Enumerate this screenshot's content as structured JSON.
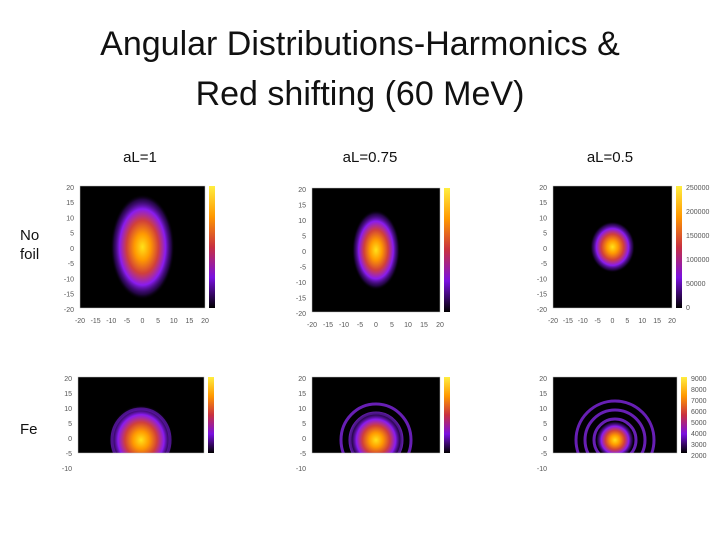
{
  "title_lines": [
    "Angular Distributions-Harmonics &",
    "Red shifting (60 MeV)"
  ],
  "columns": [
    "aL=1",
    "aL=0.75",
    "aL=0.5"
  ],
  "rows": [
    "No foil",
    "Fe"
  ],
  "panels": [
    [
      {
        "yticks": [
          "20",
          "15",
          "10",
          "5",
          "0",
          "-5",
          "-10",
          "-15",
          "-20"
        ],
        "xticks": [
          "-20",
          "-15",
          "-10",
          "-5",
          "0",
          "5",
          "10",
          "15",
          "20"
        ]
      },
      {
        "yticks": [
          "20",
          "15",
          "10",
          "5",
          "0",
          "-5",
          "-10",
          "-15",
          "-20"
        ],
        "xticks": [
          "-20",
          "-15",
          "-10",
          "-5",
          "0",
          "5",
          "10",
          "15",
          "20"
        ]
      },
      {
        "yticks": [
          "20",
          "15",
          "10",
          "5",
          "0",
          "-5",
          "-10",
          "-15",
          "-20"
        ],
        "xticks": [
          "-20",
          "-15",
          "-10",
          "-5",
          "0",
          "5",
          "10",
          "15",
          "20"
        ],
        "colorbar": [
          "250000",
          "200000",
          "150000",
          "100000",
          "50000",
          "0"
        ]
      }
    ],
    [
      {
        "yticks": [
          "20",
          "15",
          "10",
          "5",
          "0",
          "-5",
          "-10"
        ]
      },
      {
        "yticks": [
          "20",
          "15",
          "10",
          "5",
          "0",
          "-5",
          "-10"
        ]
      },
      {
        "yticks": [
          "20",
          "15",
          "10",
          "5",
          "0",
          "-5",
          "-10"
        ],
        "colorbar": [
          "9000",
          "8000",
          "7000",
          "6000",
          "5000",
          "4000",
          "3000",
          "2000"
        ]
      }
    ]
  ]
}
